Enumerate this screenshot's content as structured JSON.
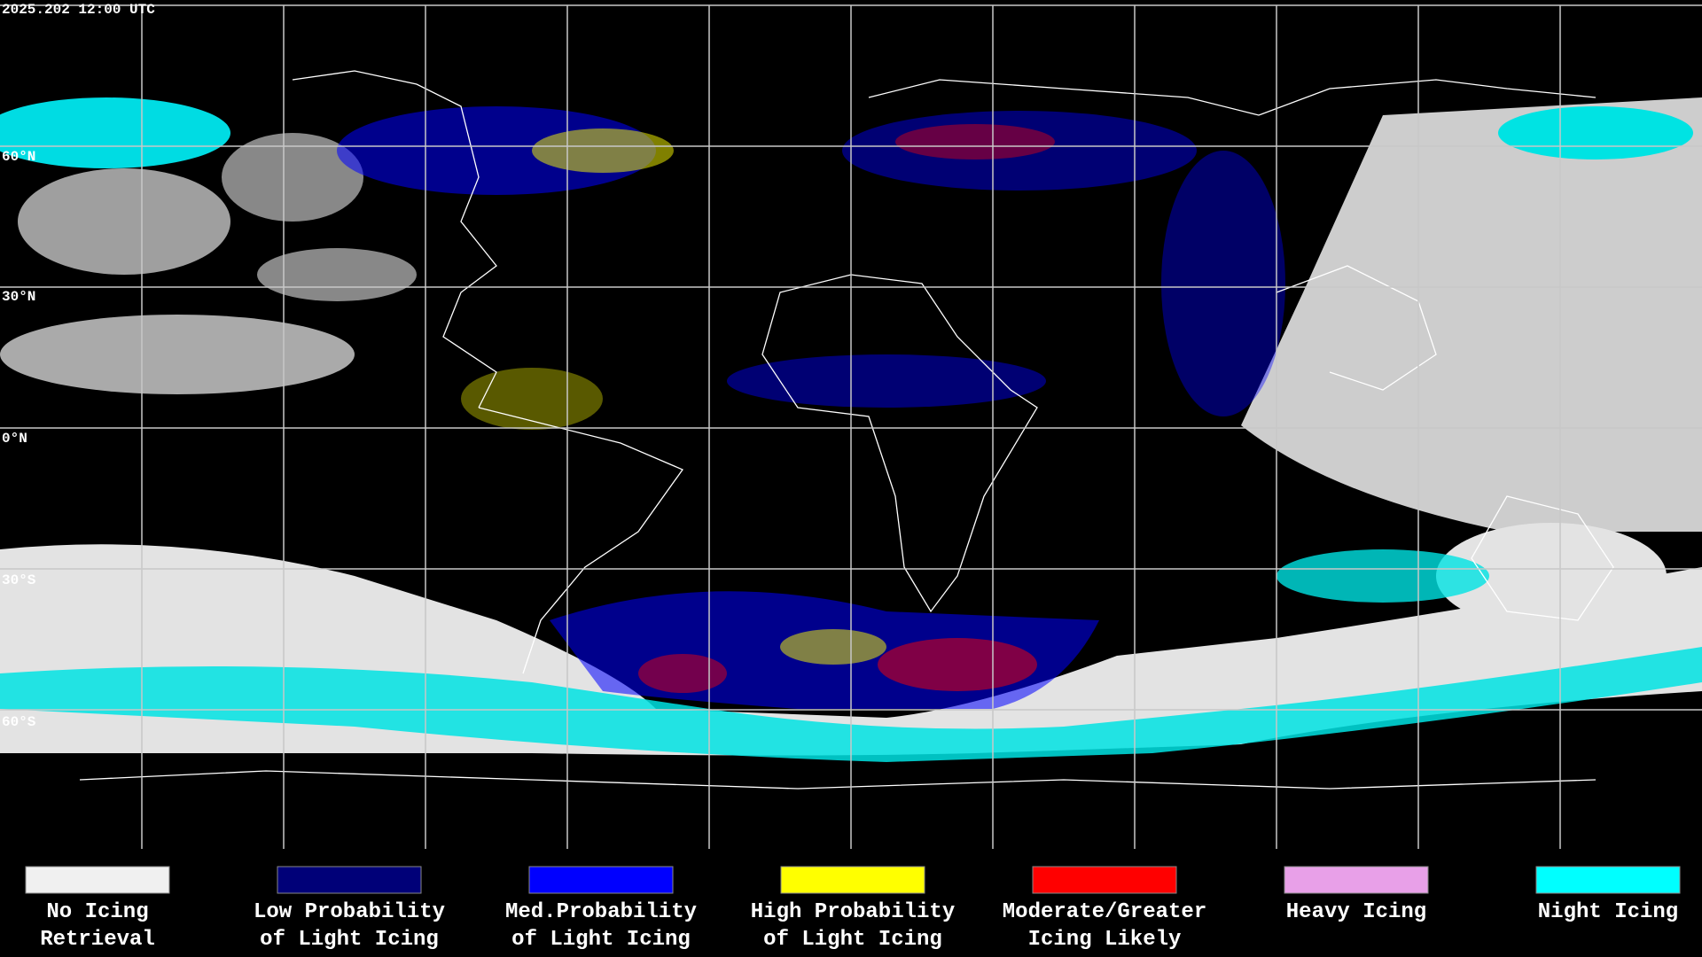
{
  "timestamp": "2025.202 12:00 UTC",
  "latitude_labels": [
    "60°N",
    "30°N",
    "0°N",
    "30°S",
    "60°S"
  ],
  "legend": [
    {
      "label_lines": [
        "No Icing",
        "Retrieval"
      ],
      "color": "#f0f0f0"
    },
    {
      "label_lines": [
        "Low Probability",
        "of Light Icing"
      ],
      "color": "#000078"
    },
    {
      "label_lines": [
        "Med.Probability",
        "of Light Icing"
      ],
      "color": "#0000ff"
    },
    {
      "label_lines": [
        "High Probability",
        "of Light Icing"
      ],
      "color": "#ffff00"
    },
    {
      "label_lines": [
        "Moderate/Greater",
        "Icing Likely"
      ],
      "color": "#ff0000"
    },
    {
      "label_lines": [
        "Heavy Icing"
      ],
      "color": "#e8a0e8"
    },
    {
      "label_lines": [
        "Night Icing"
      ],
      "color": "#00ffff"
    }
  ]
}
